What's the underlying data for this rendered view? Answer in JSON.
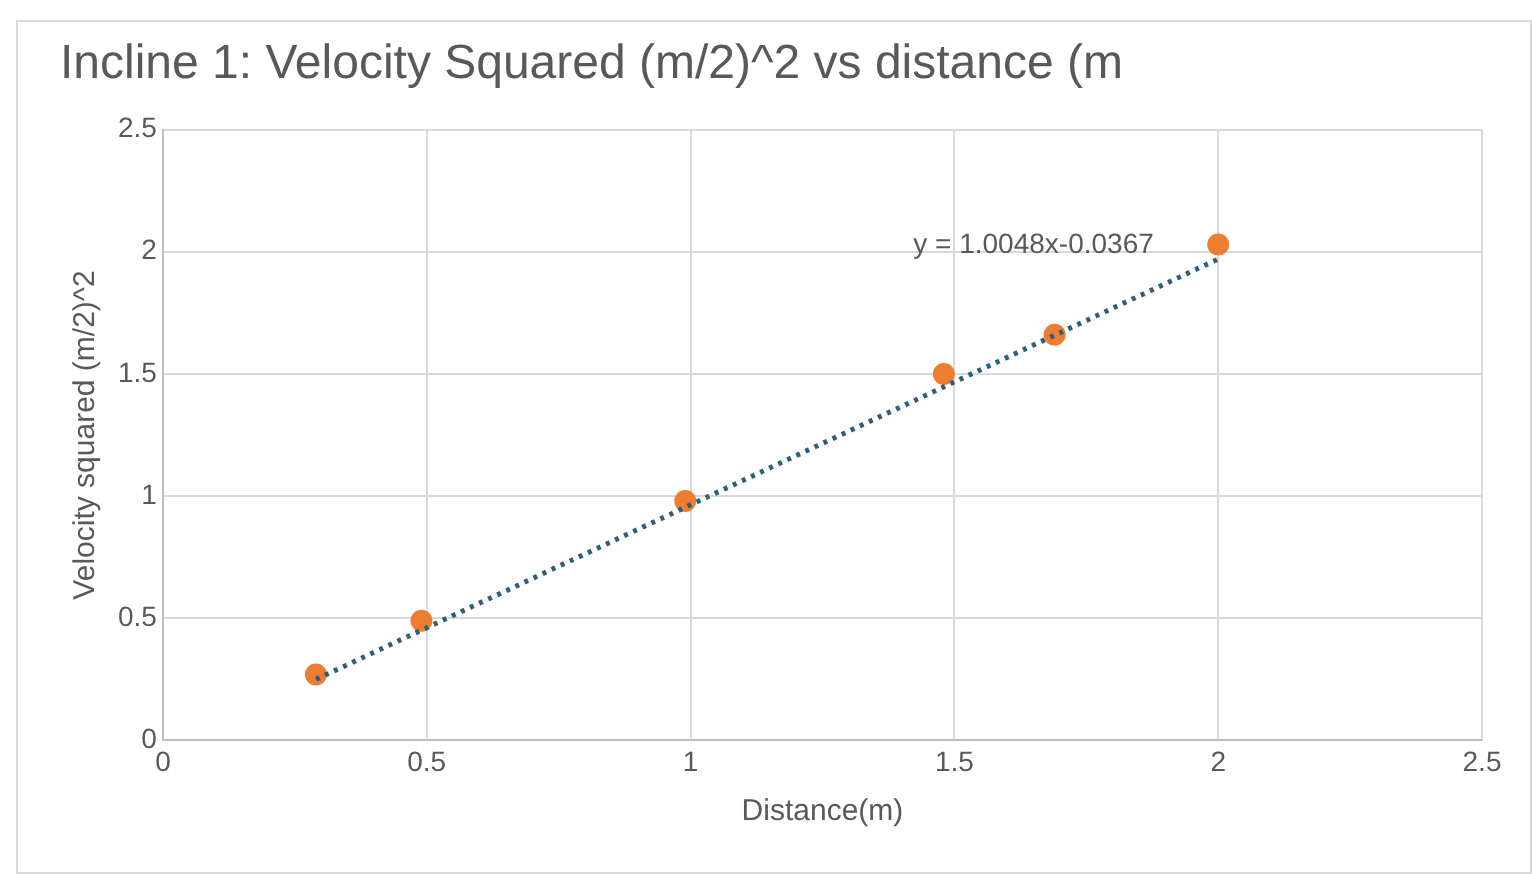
{
  "chart_data": {
    "type": "scatter",
    "title": "Incline 1: Velocity Squared (m/2)^2 vs distance (m",
    "xlabel": "Distance(m)",
    "ylabel": "Velocity squared (m/2)^2",
    "xlim": [
      0,
      2.5
    ],
    "xticks": [
      0,
      0.5,
      1,
      1.5,
      2,
      2.5
    ],
    "ylim": [
      0,
      2.5
    ],
    "yticks": [
      0,
      0.5,
      1,
      1.5,
      2,
      2.5
    ],
    "grid": true,
    "marker": "circle",
    "series": [
      {
        "color": "#ed7d31",
        "x": [
          0.29,
          0.49,
          0.99,
          1.48,
          1.69,
          2.0
        ],
        "values": [
          0.27,
          0.49,
          0.98,
          1.5,
          1.66,
          2.03
        ]
      },
      {
        "type": "line",
        "color": "#2e5f7a",
        "line_style": "dotted",
        "marker": "none",
        "x": [
          0.29,
          2.0
        ],
        "values": [
          0.25,
          1.97
        ]
      }
    ],
    "annotations": [
      "y = 1.0048x-0.0367"
    ]
  }
}
